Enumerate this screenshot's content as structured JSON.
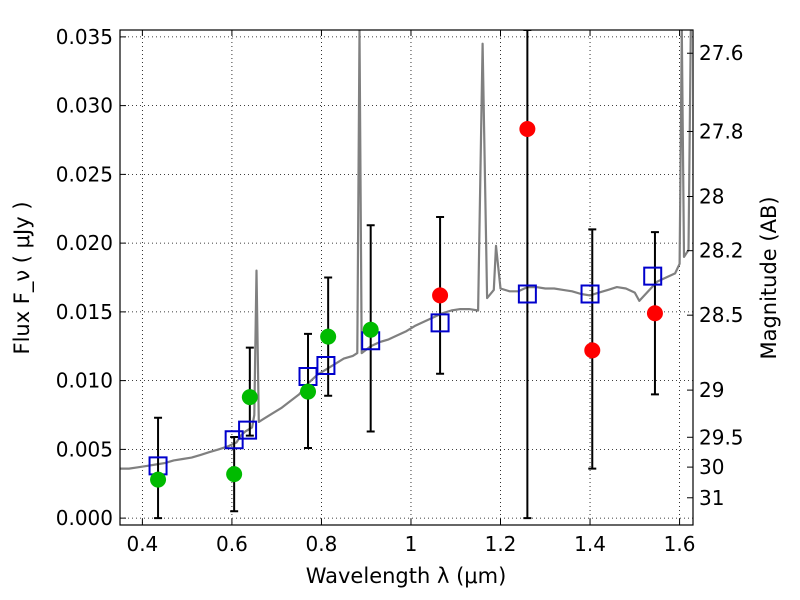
{
  "chart_data": {
    "type": "scatter",
    "xlabel": "Wavelength  λ (μm)",
    "ylabel": "Flux  F_ν  ( μJy )",
    "ylabel_right": "Magnitude (AB)",
    "xlim": [
      0.35,
      1.63
    ],
    "ylim": [
      -0.0005,
      0.0355
    ],
    "grid": true,
    "x_ticks": [
      0.4,
      0.6,
      0.8,
      1.0,
      1.2,
      1.4,
      1.6
    ],
    "x_tick_labels": [
      "0.4",
      "0.6",
      "0.8",
      "1",
      "1.2",
      "1.4",
      "1.6"
    ],
    "y_ticks": [
      0.0,
      0.005,
      0.01,
      0.015,
      0.02,
      0.025,
      0.03,
      0.035
    ],
    "y_tick_labels": [
      "0.000",
      "0.005",
      "0.010",
      "0.015",
      "0.020",
      "0.025",
      "0.030",
      "0.035"
    ],
    "right_ticks": [
      {
        "label": "27.6",
        "flux": 0.03381
      },
      {
        "label": "27.8",
        "flux": 0.02812
      },
      {
        "label": "28",
        "flux": 0.02339
      },
      {
        "label": "28.2",
        "flux": 0.01945
      },
      {
        "label": "28.5",
        "flux": 0.01476
      },
      {
        "label": "29",
        "flux": 0.00931
      },
      {
        "label": "29.5",
        "flux": 0.00588
      },
      {
        "label": "30",
        "flux": 0.00371
      },
      {
        "label": "31",
        "flux": 0.00148
      }
    ],
    "series": [
      {
        "color": "#808080",
        "style": "line",
        "points": [
          [
            0.35,
            0.0036
          ],
          [
            0.37,
            0.0036
          ],
          [
            0.39,
            0.0037
          ],
          [
            0.41,
            0.0038
          ],
          [
            0.43,
            0.0039
          ],
          [
            0.45,
            0.004
          ],
          [
            0.47,
            0.0042
          ],
          [
            0.49,
            0.0043
          ],
          [
            0.51,
            0.0044
          ],
          [
            0.53,
            0.0046
          ],
          [
            0.55,
            0.0048
          ],
          [
            0.57,
            0.005
          ],
          [
            0.59,
            0.0052
          ],
          [
            0.61,
            0.0055
          ],
          [
            0.62,
            0.006
          ],
          [
            0.63,
            0.0063
          ],
          [
            0.645,
            0.0066
          ],
          [
            0.65,
            0.0075
          ],
          [
            0.655,
            0.018
          ],
          [
            0.66,
            0.007
          ],
          [
            0.67,
            0.0072
          ],
          [
            0.69,
            0.0076
          ],
          [
            0.71,
            0.008
          ],
          [
            0.73,
            0.0085
          ],
          [
            0.75,
            0.009
          ],
          [
            0.77,
            0.0098
          ],
          [
            0.79,
            0.0104
          ],
          [
            0.81,
            0.0108
          ],
          [
            0.83,
            0.0112
          ],
          [
            0.85,
            0.0116
          ],
          [
            0.87,
            0.0118
          ],
          [
            0.88,
            0.012
          ],
          [
            0.885,
            0.0355
          ],
          [
            0.89,
            0.012
          ],
          [
            0.91,
            0.0125
          ],
          [
            0.93,
            0.0128
          ],
          [
            0.95,
            0.013
          ],
          [
            0.97,
            0.0133
          ],
          [
            0.99,
            0.0136
          ],
          [
            1.01,
            0.014
          ],
          [
            1.03,
            0.0143
          ],
          [
            1.05,
            0.0146
          ],
          [
            1.07,
            0.0149
          ],
          [
            1.09,
            0.0151
          ],
          [
            1.11,
            0.0152
          ],
          [
            1.13,
            0.0152
          ],
          [
            1.15,
            0.0151
          ],
          [
            1.16,
            0.0345
          ],
          [
            1.17,
            0.016
          ],
          [
            1.185,
            0.0166
          ],
          [
            1.19,
            0.0198
          ],
          [
            1.2,
            0.0167
          ],
          [
            1.22,
            0.0165
          ],
          [
            1.24,
            0.0165
          ],
          [
            1.26,
            0.0168
          ],
          [
            1.28,
            0.0168
          ],
          [
            1.3,
            0.0167
          ],
          [
            1.32,
            0.0167
          ],
          [
            1.34,
            0.0166
          ],
          [
            1.36,
            0.0165
          ],
          [
            1.38,
            0.0163
          ],
          [
            1.4,
            0.0162
          ],
          [
            1.42,
            0.0164
          ],
          [
            1.44,
            0.0166
          ],
          [
            1.46,
            0.0168
          ],
          [
            1.48,
            0.0167
          ],
          [
            1.5,
            0.0164
          ],
          [
            1.51,
            0.0158
          ],
          [
            1.53,
            0.0165
          ],
          [
            1.55,
            0.0172
          ],
          [
            1.57,
            0.0175
          ],
          [
            1.59,
            0.0178
          ],
          [
            1.6,
            0.0185
          ],
          [
            1.605,
            0.0355
          ],
          [
            1.61,
            0.019
          ],
          [
            1.62,
            0.0195
          ],
          [
            1.625,
            0.0355
          ]
        ]
      },
      {
        "color": "#0000cc",
        "marker": "open-square",
        "points": [
          [
            0.435,
            0.0038
          ],
          [
            0.605,
            0.0057
          ],
          [
            0.635,
            0.0064
          ],
          [
            0.77,
            0.0103
          ],
          [
            0.81,
            0.0111
          ],
          [
            0.91,
            0.0129
          ],
          [
            1.065,
            0.0142
          ],
          [
            1.26,
            0.0163
          ],
          [
            1.4,
            0.0163
          ],
          [
            1.54,
            0.0176
          ]
        ]
      },
      {
        "color": "#00bb00",
        "marker": "filled-circle",
        "points": [
          [
            0.435,
            0.0028
          ],
          [
            0.605,
            0.0032
          ],
          [
            0.64,
            0.0088
          ],
          [
            0.77,
            0.0092
          ],
          [
            0.815,
            0.0132
          ],
          [
            0.91,
            0.0137
          ]
        ]
      },
      {
        "color": "#ff0000",
        "marker": "filled-circle",
        "points": [
          [
            1.065,
            0.0162
          ],
          [
            1.26,
            0.0283
          ],
          [
            1.405,
            0.0122
          ],
          [
            1.545,
            0.0149
          ]
        ]
      }
    ],
    "error_bars": [
      {
        "x": 0.435,
        "low": 0.0,
        "high": 0.0073
      },
      {
        "x": 0.605,
        "low": 0.0005,
        "high": 0.0059
      },
      {
        "x": 0.64,
        "low": 0.006,
        "high": 0.0124
      },
      {
        "x": 0.77,
        "low": 0.0051,
        "high": 0.0134
      },
      {
        "x": 0.815,
        "low": 0.0089,
        "high": 0.0175
      },
      {
        "x": 0.91,
        "low": 0.0063,
        "high": 0.0213
      },
      {
        "x": 1.065,
        "low": 0.0105,
        "high": 0.0219
      },
      {
        "x": 1.26,
        "low": 0.0,
        "high": 0.0355
      },
      {
        "x": 1.405,
        "low": 0.0036,
        "high": 0.021
      },
      {
        "x": 1.545,
        "low": 0.009,
        "high": 0.0208
      }
    ]
  }
}
